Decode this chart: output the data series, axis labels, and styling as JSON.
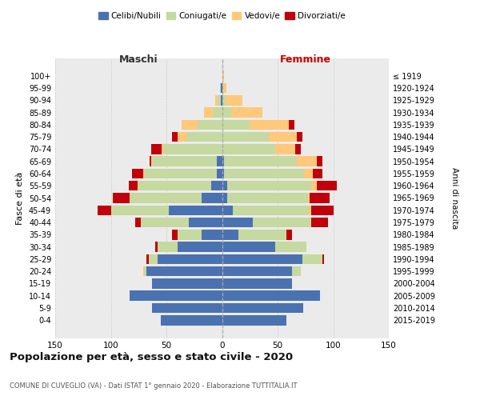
{
  "age_groups": [
    "100+",
    "95-99",
    "90-94",
    "85-89",
    "80-84",
    "75-79",
    "70-74",
    "65-69",
    "60-64",
    "55-59",
    "50-54",
    "45-49",
    "40-44",
    "35-39",
    "30-34",
    "25-29",
    "20-24",
    "15-19",
    "10-14",
    "5-9",
    "0-4"
  ],
  "birth_years": [
    "≤ 1919",
    "1920-1924",
    "1925-1929",
    "1930-1934",
    "1935-1939",
    "1940-1944",
    "1945-1949",
    "1950-1954",
    "1955-1959",
    "1960-1964",
    "1965-1969",
    "1970-1974",
    "1975-1979",
    "1980-1984",
    "1985-1989",
    "1990-1994",
    "1995-1999",
    "2000-2004",
    "2005-2009",
    "2010-2014",
    "2015-2019"
  ],
  "male_celibi": [
    0,
    1,
    1,
    0,
    0,
    0,
    0,
    5,
    5,
    10,
    18,
    48,
    30,
    18,
    40,
    58,
    68,
    63,
    83,
    63,
    55
  ],
  "male_coniugati": [
    0,
    1,
    3,
    8,
    22,
    32,
    52,
    58,
    65,
    65,
    65,
    52,
    43,
    22,
    18,
    8,
    2,
    0,
    0,
    0,
    0
  ],
  "male_vedovi": [
    0,
    0,
    2,
    8,
    14,
    8,
    2,
    1,
    1,
    1,
    0,
    0,
    0,
    0,
    0,
    0,
    1,
    0,
    0,
    0,
    0
  ],
  "male_divorziati": [
    0,
    0,
    0,
    0,
    0,
    5,
    10,
    1,
    10,
    8,
    15,
    12,
    5,
    5,
    2,
    2,
    0,
    0,
    0,
    0,
    0
  ],
  "female_celibi": [
    0,
    0,
    0,
    0,
    0,
    0,
    0,
    2,
    2,
    5,
    5,
    10,
    28,
    15,
    48,
    72,
    63,
    63,
    88,
    73,
    58
  ],
  "female_coniugati": [
    0,
    1,
    3,
    8,
    25,
    42,
    48,
    65,
    72,
    75,
    72,
    68,
    52,
    43,
    28,
    18,
    8,
    0,
    0,
    0,
    0
  ],
  "female_vedovi": [
    2,
    3,
    15,
    28,
    35,
    25,
    18,
    18,
    8,
    5,
    2,
    2,
    0,
    0,
    0,
    0,
    0,
    0,
    0,
    0,
    0
  ],
  "female_divorziati": [
    0,
    0,
    0,
    0,
    5,
    5,
    5,
    5,
    8,
    18,
    18,
    20,
    15,
    5,
    0,
    2,
    0,
    0,
    0,
    0,
    0
  ],
  "colors": {
    "celibi": "#4a72b0",
    "coniugati": "#c5d9a0",
    "vedovi": "#ffc87a",
    "divorziati": "#c0000a"
  },
  "xlim": 150,
  "label_maschi": "Maschi",
  "label_femmine": "Femmine",
  "ylabel_left": "Fasce di età",
  "ylabel_right": "Anni di nascita",
  "title": "Popolazione per età, sesso e stato civile - 2020",
  "subtitle": "COMUNE DI CUVEGLIO (VA) - Dati ISTAT 1° gennaio 2020 - Elaborazione TUTTITALIA.IT",
  "legend_labels": [
    "Celibi/Nubili",
    "Coniugati/e",
    "Vedovi/e",
    "Divorziati/e"
  ],
  "bg_color": "#ebebeb",
  "grid_color": "#cccccc"
}
